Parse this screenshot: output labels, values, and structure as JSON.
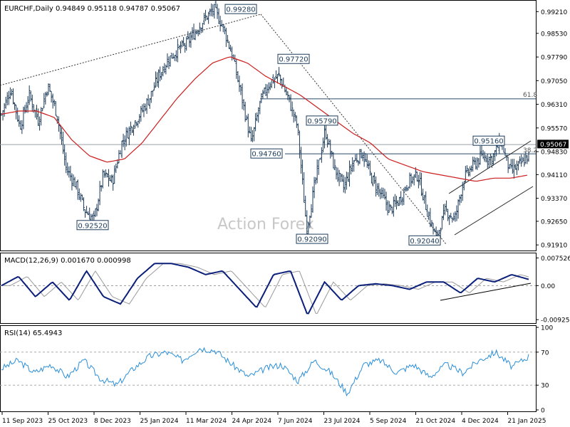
{
  "symbol_header": "EURCHF,Daily  0.94849 0.95118 0.94787 0.95067",
  "watermark": "Action Forex",
  "chart_data": [
    {
      "type": "line",
      "panel": "price",
      "ylim": [
        0.9178,
        0.9944
      ],
      "y_ticks": [
        "0.92540",
        "0.92890",
        "0.93240",
        "0.93590",
        "0.93940",
        "0.94290",
        "0.94640",
        "0.94990",
        "0.95340",
        "0.95690",
        "0.96040",
        "0.96390",
        "0.96740",
        "0.97090",
        "0.97440",
        "0.97790",
        "0.98140",
        "0.98490",
        "0.98840",
        "0.99190",
        "0.99540"
      ],
      "visible_ticks": [
        "0.99210",
        "0.98530",
        "0.97790",
        "0.97050",
        "0.96310",
        "0.95570",
        "0.94830",
        "0.94110",
        "0.93370",
        "0.92650",
        "0.91910"
      ],
      "x_labels": [
        "11 Sep 2023",
        "25 Oct 2023",
        "8 Dec 2023",
        "25 Jan 2024",
        "11 Mar 2024",
        "24 Apr 2024",
        "7 Jun 2024",
        "23 Jul 2024",
        "5 Sep 2024",
        "21 Oct 2024",
        "4 Dec 2024",
        "21 Jan 2025"
      ],
      "last_price": "0.95067",
      "fib_labels": {
        "f618": "61.8",
        "f382": "38.2"
      },
      "levels": {
        "f618": 0.9648,
        "f382": 0.9476,
        "f0": 0.9505
      },
      "annotations": [
        {
          "text": "0.99280",
          "value": 0.9928
        },
        {
          "text": "0.97720",
          "value": 0.9772
        },
        {
          "text": "0.95790",
          "value": 0.9579
        },
        {
          "text": "0.95160",
          "value": 0.9516
        },
        {
          "text": "0.94760",
          "value": 0.9476
        },
        {
          "text": "0.92520",
          "value": 0.9252
        },
        {
          "text": "0.92090",
          "value": 0.9209
        },
        {
          "text": "0.92040",
          "value": 0.9204
        }
      ],
      "close_anchors": [
        0.96,
        0.968,
        0.956,
        0.966,
        0.958,
        0.969,
        0.96,
        0.943,
        0.938,
        0.93,
        0.927,
        0.941,
        0.939,
        0.951,
        0.956,
        0.96,
        0.965,
        0.972,
        0.977,
        0.98,
        0.982,
        0.986,
        0.99,
        0.9928,
        0.987,
        0.978,
        0.965,
        0.951,
        0.964,
        0.97,
        0.972,
        0.965,
        0.956,
        0.924,
        0.94,
        0.955,
        0.943,
        0.937,
        0.945,
        0.948,
        0.94,
        0.935,
        0.93,
        0.933,
        0.939,
        0.941,
        0.93,
        0.921,
        0.93,
        0.927,
        0.94,
        0.944,
        0.947,
        0.946,
        0.9516,
        0.942,
        0.944,
        0.947
      ],
      "ma_anchors": [
        0.96,
        0.961,
        0.961,
        0.959,
        0.952,
        0.947,
        0.945,
        0.946,
        0.951,
        0.958,
        0.965,
        0.971,
        0.976,
        0.978,
        0.976,
        0.972,
        0.969,
        0.966,
        0.962,
        0.958,
        0.954,
        0.951,
        0.946,
        0.944,
        0.942,
        0.941,
        0.94,
        0.939,
        0.94,
        0.94,
        0.941
      ],
      "price_range": {
        "low": 0.9178,
        "high": 0.9944
      }
    },
    {
      "type": "line",
      "panel": "macd",
      "header": "MACD(12,26,9) 0.001670 0.000998",
      "ylim": [
        -0.0098,
        0.008
      ],
      "tick_labels": [
        "0.007526",
        "0.00",
        "-0.009252"
      ],
      "tick_values": [
        0.007526,
        0.0,
        -0.009252
      ],
      "macd_anchors": [
        0.0,
        0.0025,
        -0.003,
        0.001,
        -0.004,
        0.004,
        -0.003,
        -0.005,
        0.002,
        0.006,
        0.006,
        0.005,
        0.003,
        0.004,
        -0.001,
        -0.006,
        0.003,
        0.004,
        -0.008,
        0.001,
        -0.004,
        0.0,
        0.0005,
        0.0,
        -0.001,
        0.001,
        0.001,
        -0.002,
        0.002,
        0.001,
        0.003,
        0.0017
      ]
    },
    {
      "type": "line",
      "panel": "rsi",
      "header": "RSI(14) 65.4943",
      "ylim": [
        0,
        100
      ],
      "tick_labels": [
        "100",
        "70",
        "30",
        "0"
      ],
      "tick_values": [
        100,
        70,
        30,
        0
      ],
      "rsi_anchors": [
        50,
        60,
        45,
        55,
        40,
        60,
        38,
        30,
        50,
        65,
        70,
        60,
        75,
        72,
        55,
        40,
        50,
        55,
        35,
        60,
        45,
        20,
        55,
        60,
        45,
        55,
        40,
        55,
        45,
        60,
        70,
        52,
        65
      ]
    }
  ]
}
